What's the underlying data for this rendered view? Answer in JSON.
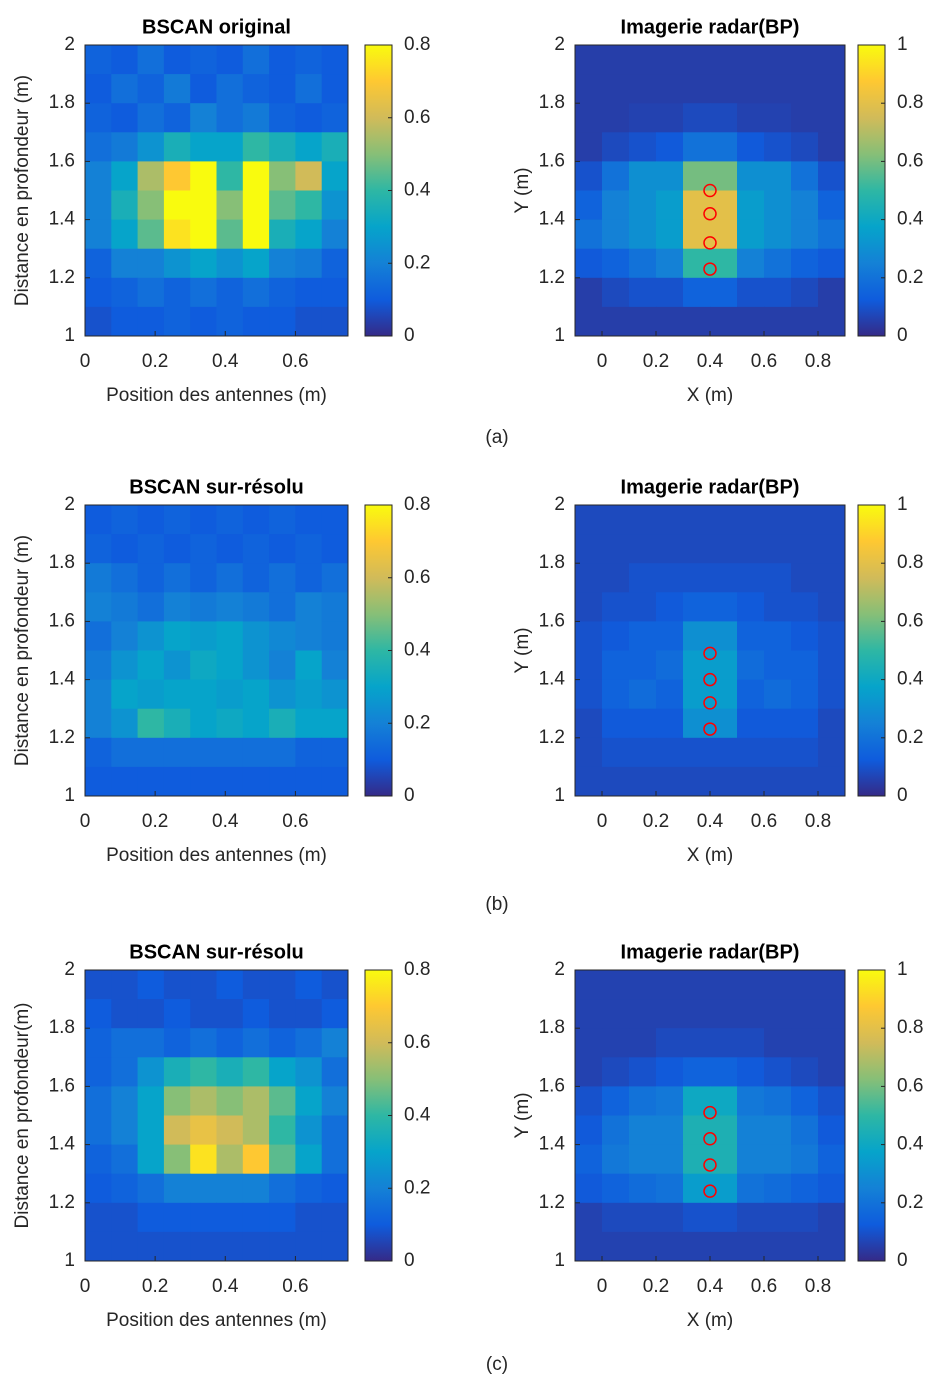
{
  "captions": [
    "(a)",
    "(b)",
    "(c)"
  ],
  "chart_data": [
    {
      "type": "heatmap",
      "title": "BSCAN original",
      "xlabel": "Position des antennes (m)",
      "ylabel": "Distance en profondeur (m)",
      "xlim": [
        0,
        0.75
      ],
      "ylim": [
        1,
        2
      ],
      "xticks": [
        0,
        0.2,
        0.4,
        0.6
      ],
      "yticks": [
        1,
        1.2,
        1.4,
        1.6,
        1.8,
        2
      ],
      "clim": [
        0,
        0.8
      ],
      "cticks": [
        0,
        0.2,
        0.4,
        0.6,
        0.8
      ],
      "colormap": "parula",
      "z": [
        [
          0.12,
          0.1,
          0.15,
          0.1,
          0.12,
          0.1,
          0.15,
          0.1,
          0.12,
          0.1
        ],
        [
          0.1,
          0.15,
          0.12,
          0.18,
          0.1,
          0.15,
          0.12,
          0.1,
          0.15,
          0.1
        ],
        [
          0.12,
          0.1,
          0.15,
          0.12,
          0.2,
          0.15,
          0.18,
          0.12,
          0.1,
          0.12
        ],
        [
          0.15,
          0.18,
          0.25,
          0.35,
          0.3,
          0.3,
          0.4,
          0.35,
          0.3,
          0.35
        ],
        [
          0.2,
          0.3,
          0.55,
          0.7,
          0.8,
          0.4,
          0.8,
          0.5,
          0.6,
          0.3
        ],
        [
          0.2,
          0.35,
          0.5,
          0.8,
          0.8,
          0.5,
          0.8,
          0.45,
          0.4,
          0.25
        ],
        [
          0.2,
          0.3,
          0.45,
          0.75,
          0.8,
          0.45,
          0.8,
          0.35,
          0.3,
          0.2
        ],
        [
          0.12,
          0.2,
          0.2,
          0.25,
          0.3,
          0.25,
          0.3,
          0.2,
          0.18,
          0.12
        ],
        [
          0.1,
          0.12,
          0.15,
          0.12,
          0.15,
          0.12,
          0.15,
          0.12,
          0.1,
          0.1
        ],
        [
          0.08,
          0.1,
          0.1,
          0.12,
          0.1,
          0.12,
          0.1,
          0.1,
          0.08,
          0.08
        ]
      ]
    },
    {
      "type": "heatmap",
      "title": "Imagerie radar(BP)",
      "xlabel": "X (m)",
      "ylabel": "Y (m)",
      "xlim": [
        -0.1,
        0.9
      ],
      "ylim": [
        1,
        2
      ],
      "xticks": [
        0,
        0.2,
        0.4,
        0.6,
        0.8
      ],
      "yticks": [
        1,
        1.2,
        1.4,
        1.6,
        1.8,
        2
      ],
      "clim": [
        0,
        1
      ],
      "cticks": [
        0,
        0.2,
        0.4,
        0.6,
        0.8,
        1
      ],
      "colormap": "parula",
      "z": [
        [
          0.05,
          0.05,
          0.05,
          0.05,
          0.05,
          0.05,
          0.05,
          0.05,
          0.05,
          0.05
        ],
        [
          0.05,
          0.05,
          0.05,
          0.05,
          0.05,
          0.05,
          0.05,
          0.05,
          0.05,
          0.05
        ],
        [
          0.05,
          0.05,
          0.06,
          0.06,
          0.08,
          0.08,
          0.06,
          0.06,
          0.05,
          0.05
        ],
        [
          0.05,
          0.08,
          0.1,
          0.12,
          0.2,
          0.2,
          0.12,
          0.1,
          0.08,
          0.05
        ],
        [
          0.1,
          0.2,
          0.3,
          0.3,
          0.6,
          0.6,
          0.3,
          0.3,
          0.2,
          0.1
        ],
        [
          0.15,
          0.25,
          0.3,
          0.35,
          0.8,
          0.8,
          0.35,
          0.3,
          0.25,
          0.15
        ],
        [
          0.2,
          0.25,
          0.3,
          0.35,
          0.8,
          0.8,
          0.35,
          0.3,
          0.25,
          0.2
        ],
        [
          0.12,
          0.15,
          0.2,
          0.25,
          0.5,
          0.5,
          0.25,
          0.2,
          0.15,
          0.12
        ],
        [
          0.05,
          0.08,
          0.1,
          0.1,
          0.15,
          0.15,
          0.1,
          0.1,
          0.08,
          0.05
        ],
        [
          0.05,
          0.05,
          0.05,
          0.05,
          0.05,
          0.05,
          0.05,
          0.05,
          0.05,
          0.05
        ]
      ],
      "targets": {
        "x": [
          0.4,
          0.4,
          0.4,
          0.4
        ],
        "y": [
          1.23,
          1.32,
          1.42,
          1.5
        ],
        "color": "#ff0000"
      }
    },
    {
      "type": "heatmap",
      "title": "BSCAN sur-résolu",
      "xlabel": "Position des antennes (m)",
      "ylabel": "Distance en profondeur (m)",
      "xlim": [
        0,
        0.75
      ],
      "ylim": [
        1,
        2
      ],
      "xticks": [
        0,
        0.2,
        0.4,
        0.6
      ],
      "yticks": [
        1,
        1.2,
        1.4,
        1.6,
        1.8,
        2
      ],
      "clim": [
        0,
        0.8
      ],
      "cticks": [
        0,
        0.2,
        0.4,
        0.6,
        0.8
      ],
      "colormap": "parula",
      "z": [
        [
          0.1,
          0.12,
          0.1,
          0.12,
          0.1,
          0.12,
          0.1,
          0.12,
          0.1,
          0.1
        ],
        [
          0.12,
          0.1,
          0.12,
          0.1,
          0.12,
          0.1,
          0.12,
          0.1,
          0.12,
          0.1
        ],
        [
          0.18,
          0.15,
          0.12,
          0.15,
          0.12,
          0.15,
          0.12,
          0.15,
          0.12,
          0.15
        ],
        [
          0.2,
          0.18,
          0.15,
          0.2,
          0.18,
          0.2,
          0.18,
          0.15,
          0.2,
          0.18
        ],
        [
          0.15,
          0.2,
          0.25,
          0.3,
          0.28,
          0.3,
          0.25,
          0.22,
          0.2,
          0.18
        ],
        [
          0.18,
          0.25,
          0.3,
          0.25,
          0.32,
          0.3,
          0.25,
          0.2,
          0.3,
          0.2
        ],
        [
          0.2,
          0.3,
          0.28,
          0.3,
          0.3,
          0.28,
          0.3,
          0.25,
          0.28,
          0.25
        ],
        [
          0.2,
          0.25,
          0.4,
          0.35,
          0.3,
          0.32,
          0.3,
          0.35,
          0.3,
          0.3
        ],
        [
          0.12,
          0.15,
          0.15,
          0.15,
          0.15,
          0.15,
          0.15,
          0.15,
          0.12,
          0.12
        ],
        [
          0.1,
          0.1,
          0.1,
          0.1,
          0.1,
          0.1,
          0.1,
          0.1,
          0.1,
          0.1
        ]
      ]
    },
    {
      "type": "heatmap",
      "title": "Imagerie radar(BP)",
      "xlabel": "X (m)",
      "ylabel": "Y (m)",
      "xlim": [
        -0.1,
        0.9
      ],
      "ylim": [
        1,
        2
      ],
      "xticks": [
        0,
        0.2,
        0.4,
        0.6,
        0.8
      ],
      "yticks": [
        1,
        1.2,
        1.4,
        1.6,
        1.8,
        2
      ],
      "clim": [
        0,
        1
      ],
      "cticks": [
        0,
        0.2,
        0.4,
        0.6,
        0.8,
        1
      ],
      "colormap": "parula",
      "z": [
        [
          0.08,
          0.08,
          0.08,
          0.08,
          0.08,
          0.08,
          0.08,
          0.08,
          0.08,
          0.08
        ],
        [
          0.08,
          0.08,
          0.08,
          0.08,
          0.08,
          0.08,
          0.08,
          0.08,
          0.08,
          0.08
        ],
        [
          0.08,
          0.08,
          0.1,
          0.1,
          0.1,
          0.1,
          0.1,
          0.1,
          0.08,
          0.08
        ],
        [
          0.08,
          0.1,
          0.1,
          0.12,
          0.15,
          0.15,
          0.12,
          0.1,
          0.1,
          0.08
        ],
        [
          0.1,
          0.12,
          0.15,
          0.15,
          0.3,
          0.3,
          0.15,
          0.15,
          0.12,
          0.1
        ],
        [
          0.1,
          0.15,
          0.15,
          0.18,
          0.35,
          0.35,
          0.18,
          0.15,
          0.15,
          0.1
        ],
        [
          0.1,
          0.15,
          0.18,
          0.15,
          0.35,
          0.35,
          0.15,
          0.18,
          0.15,
          0.1
        ],
        [
          0.08,
          0.12,
          0.12,
          0.12,
          0.3,
          0.3,
          0.12,
          0.12,
          0.12,
          0.08
        ],
        [
          0.08,
          0.1,
          0.1,
          0.1,
          0.1,
          0.1,
          0.1,
          0.1,
          0.1,
          0.08
        ],
        [
          0.08,
          0.08,
          0.08,
          0.08,
          0.08,
          0.08,
          0.08,
          0.08,
          0.08,
          0.08
        ]
      ],
      "targets": {
        "x": [
          0.4,
          0.4,
          0.4,
          0.4
        ],
        "y": [
          1.23,
          1.32,
          1.4,
          1.49
        ],
        "color": "#ff0000"
      }
    },
    {
      "type": "heatmap",
      "title": "BSCAN sur-résolu",
      "xlabel": "Position des antennes (m)",
      "ylabel": "Distance en profondeur(m)",
      "xlim": [
        0,
        0.75
      ],
      "ylim": [
        1,
        2
      ],
      "xticks": [
        0,
        0.2,
        0.4,
        0.6
      ],
      "yticks": [
        1,
        1.2,
        1.4,
        1.6,
        1.8,
        2
      ],
      "clim": [
        0,
        0.8
      ],
      "cticks": [
        0,
        0.2,
        0.4,
        0.6,
        0.8
      ],
      "colormap": "parula",
      "z": [
        [
          0.08,
          0.08,
          0.1,
          0.08,
          0.08,
          0.1,
          0.08,
          0.08,
          0.1,
          0.08
        ],
        [
          0.1,
          0.08,
          0.08,
          0.1,
          0.08,
          0.08,
          0.1,
          0.08,
          0.08,
          0.1
        ],
        [
          0.12,
          0.15,
          0.15,
          0.12,
          0.15,
          0.12,
          0.15,
          0.12,
          0.15,
          0.2
        ],
        [
          0.12,
          0.15,
          0.25,
          0.35,
          0.4,
          0.35,
          0.4,
          0.3,
          0.25,
          0.15
        ],
        [
          0.15,
          0.2,
          0.3,
          0.5,
          0.55,
          0.5,
          0.55,
          0.45,
          0.3,
          0.2
        ],
        [
          0.15,
          0.2,
          0.3,
          0.6,
          0.65,
          0.6,
          0.55,
          0.4,
          0.25,
          0.15
        ],
        [
          0.12,
          0.15,
          0.3,
          0.5,
          0.75,
          0.55,
          0.7,
          0.45,
          0.3,
          0.15
        ],
        [
          0.1,
          0.12,
          0.15,
          0.2,
          0.2,
          0.2,
          0.2,
          0.15,
          0.12,
          0.1
        ],
        [
          0.08,
          0.08,
          0.1,
          0.1,
          0.1,
          0.1,
          0.1,
          0.1,
          0.08,
          0.08
        ],
        [
          0.08,
          0.08,
          0.08,
          0.08,
          0.08,
          0.08,
          0.08,
          0.08,
          0.08,
          0.08
        ]
      ]
    },
    {
      "type": "heatmap",
      "title": "Imagerie radar(BP)",
      "xlabel": "X (m)",
      "ylabel": "Y (m)",
      "xlim": [
        -0.1,
        0.9
      ],
      "ylim": [
        1,
        2
      ],
      "xticks": [
        0,
        0.2,
        0.4,
        0.6,
        0.8
      ],
      "yticks": [
        1,
        1.2,
        1.4,
        1.6,
        1.8,
        2
      ],
      "clim": [
        0,
        1
      ],
      "cticks": [
        0,
        0.2,
        0.4,
        0.6,
        0.8,
        1
      ],
      "colormap": "parula",
      "z": [
        [
          0.06,
          0.06,
          0.06,
          0.06,
          0.06,
          0.06,
          0.06,
          0.06,
          0.06,
          0.06
        ],
        [
          0.06,
          0.06,
          0.06,
          0.06,
          0.06,
          0.06,
          0.06,
          0.06,
          0.06,
          0.06
        ],
        [
          0.06,
          0.06,
          0.06,
          0.08,
          0.08,
          0.08,
          0.08,
          0.06,
          0.06,
          0.06
        ],
        [
          0.06,
          0.08,
          0.1,
          0.12,
          0.15,
          0.15,
          0.12,
          0.1,
          0.08,
          0.06
        ],
        [
          0.1,
          0.15,
          0.2,
          0.22,
          0.4,
          0.4,
          0.22,
          0.2,
          0.15,
          0.1
        ],
        [
          0.12,
          0.2,
          0.25,
          0.25,
          0.45,
          0.45,
          0.25,
          0.25,
          0.2,
          0.12
        ],
        [
          0.15,
          0.22,
          0.25,
          0.25,
          0.45,
          0.45,
          0.25,
          0.25,
          0.22,
          0.15
        ],
        [
          0.12,
          0.15,
          0.18,
          0.2,
          0.35,
          0.35,
          0.2,
          0.18,
          0.15,
          0.12
        ],
        [
          0.06,
          0.08,
          0.08,
          0.08,
          0.1,
          0.1,
          0.08,
          0.08,
          0.08,
          0.06
        ],
        [
          0.06,
          0.06,
          0.06,
          0.06,
          0.06,
          0.06,
          0.06,
          0.06,
          0.06,
          0.06
        ]
      ],
      "targets": {
        "x": [
          0.4,
          0.4,
          0.4,
          0.4
        ],
        "y": [
          1.24,
          1.33,
          1.42,
          1.51
        ],
        "color": "#ff0000"
      }
    }
  ]
}
